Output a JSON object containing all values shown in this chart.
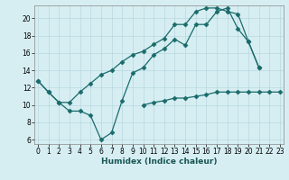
{
  "title": "",
  "xlabel": "Humidex (Indice chaleur)",
  "background_color": "#d6eef2",
  "grid_color": "#b8d8e0",
  "line_color": "#1a6b6b",
  "x_ticks": [
    0,
    1,
    2,
    3,
    4,
    5,
    6,
    7,
    8,
    9,
    10,
    11,
    12,
    13,
    14,
    15,
    16,
    17,
    18,
    19,
    20,
    21,
    22,
    23
  ],
  "xlim": [
    -0.3,
    23.3
  ],
  "ylim": [
    5.5,
    21.5
  ],
  "y_ticks": [
    6,
    8,
    10,
    12,
    14,
    16,
    18,
    20
  ],
  "line1_x": [
    0,
    1,
    2,
    3,
    4,
    5,
    6,
    7,
    8,
    9,
    10,
    11,
    12,
    13,
    14,
    15,
    16,
    17,
    18,
    19,
    20,
    21
  ],
  "line1_y": [
    12.8,
    11.5,
    10.3,
    9.3,
    9.3,
    8.8,
    6.0,
    6.8,
    10.5,
    13.7,
    14.3,
    15.8,
    16.5,
    17.6,
    16.9,
    19.3,
    19.3,
    20.8,
    21.2,
    18.8,
    17.3,
    14.3
  ],
  "line2_x": [
    0,
    1,
    2,
    3,
    4,
    5,
    6,
    7,
    8,
    9,
    10,
    11,
    12,
    13,
    14,
    15,
    16,
    17,
    18,
    19,
    20,
    21
  ],
  "line2_y": [
    12.8,
    11.5,
    10.3,
    10.3,
    11.5,
    12.5,
    13.5,
    14.0,
    15.0,
    15.8,
    16.2,
    17.0,
    17.7,
    19.3,
    19.3,
    20.8,
    21.2,
    21.2,
    20.8,
    20.5,
    17.3,
    14.3
  ],
  "line3_x": [
    10,
    11,
    12,
    13,
    14,
    15,
    16,
    17,
    18,
    19,
    20,
    21,
    22,
    23
  ],
  "line3_y": [
    10.0,
    10.3,
    10.5,
    10.8,
    10.8,
    11.0,
    11.2,
    11.5,
    11.5,
    11.5,
    11.5,
    11.5,
    11.5,
    11.5
  ],
  "tick_fontsize": 5.5,
  "xlabel_fontsize": 6.5
}
